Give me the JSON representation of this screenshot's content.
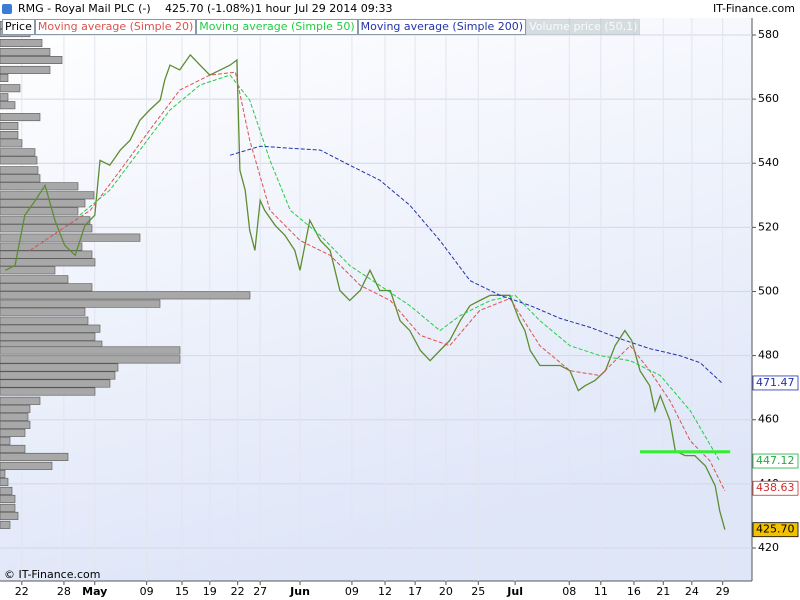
{
  "header": {
    "symbol": "RMG - Royal Mail PLC (-)",
    "quote": "425.70 (-1.08%)",
    "period": "1 hour",
    "datetime": "Jul 29 2014 09:33",
    "brand": "IT-Finance.com"
  },
  "footer": "© IT-Finance.com",
  "chart_data": {
    "type": "line",
    "grid": true,
    "xlim": [
      0,
      100
    ],
    "xticks": [
      {
        "value": 2.9,
        "label": "22"
      },
      {
        "value": 8.5,
        "label": "28"
      },
      {
        "value": 12.6,
        "label": "May"
      },
      {
        "value": 19.5,
        "label": "09"
      },
      {
        "value": 24.2,
        "label": "15"
      },
      {
        "value": 27.9,
        "label": "19"
      },
      {
        "value": 31.6,
        "label": "22"
      },
      {
        "value": 34.6,
        "label": "27"
      },
      {
        "value": 39.9,
        "label": "Jun"
      },
      {
        "value": 46.8,
        "label": "09"
      },
      {
        "value": 51.2,
        "label": "12"
      },
      {
        "value": 55.2,
        "label": "17"
      },
      {
        "value": 59.3,
        "label": "20"
      },
      {
        "value": 63.6,
        "label": "25"
      },
      {
        "value": 68.5,
        "label": "Jul"
      },
      {
        "value": 75.7,
        "label": "08"
      },
      {
        "value": 79.9,
        "label": "11"
      },
      {
        "value": 84.3,
        "label": "16"
      },
      {
        "value": 88.2,
        "label": "21"
      },
      {
        "value": 92.0,
        "label": "24"
      },
      {
        "value": 96.1,
        "label": "29"
      }
    ],
    "ylim": [
      409.7,
      585.3
    ],
    "yticks": [
      420,
      440,
      460,
      480,
      500,
      520,
      540,
      560,
      580
    ],
    "series": [
      {
        "name": "Price",
        "color": "#5e8c32",
        "style": "solid",
        "x": [
          0.7,
          2.0,
          3.3,
          4.7,
          6.0,
          7.3,
          8.6,
          10.0,
          11.3,
          12.6,
          13.3,
          14.6,
          16.0,
          17.3,
          18.6,
          19.9,
          21.3,
          21.9,
          22.6,
          23.9,
          25.3,
          26.6,
          27.9,
          29.3,
          30.6,
          31.5,
          31.9,
          32.6,
          33.2,
          33.9,
          34.6,
          35.2,
          36.6,
          37.9,
          39.2,
          39.9,
          41.2,
          42.6,
          43.9,
          45.2,
          46.5,
          47.9,
          49.2,
          50.5,
          51.9,
          53.2,
          54.5,
          55.9,
          57.2,
          58.5,
          59.8,
          61.2,
          62.5,
          63.8,
          65.2,
          66.5,
          67.8,
          69.1,
          69.8,
          70.5,
          71.8,
          73.1,
          74.5,
          75.8,
          76.9,
          77.8,
          79.1,
          80.5,
          81.8,
          83.1,
          84.0,
          85.1,
          86.4,
          87.1,
          87.8,
          89.1,
          89.8,
          91.1,
          92.4,
          93.8,
          95.1,
          95.7,
          96.4
        ],
        "values": [
          506.6,
          508.1,
          523.8,
          528.4,
          533.1,
          522.2,
          514.4,
          511.3,
          520.6,
          523.8,
          540.9,
          539.4,
          544.1,
          547.2,
          553.4,
          556.6,
          559.7,
          565.9,
          570.6,
          569.1,
          573.8,
          570.6,
          567.5,
          569.1,
          570.6,
          572.2,
          537.8,
          531.6,
          519.1,
          512.8,
          528.4,
          525.3,
          520.6,
          517.5,
          512.8,
          506.6,
          522.2,
          515.9,
          512.8,
          500.3,
          497.2,
          500.3,
          506.6,
          500.3,
          500.3,
          490.9,
          487.8,
          481.6,
          478.4,
          481.6,
          484.7,
          490.9,
          495.6,
          497.2,
          498.8,
          498.8,
          498.8,
          490.9,
          487.8,
          481.6,
          476.9,
          476.9,
          476.9,
          475.3,
          469.1,
          470.6,
          472.2,
          475.3,
          483.1,
          487.8,
          484.7,
          475.3,
          470.6,
          462.8,
          467.5,
          459.7,
          450.3,
          448.8,
          448.8,
          445.6,
          439.4,
          431.6,
          425.7
        ]
      },
      {
        "name": "Moving average (Simple 20)",
        "color": "#d9534f",
        "style": "dashed",
        "x": [
          4.0,
          8.0,
          12.0,
          16.0,
          19.9,
          23.9,
          27.9,
          31.3,
          33.2,
          35.9,
          39.9,
          43.9,
          47.9,
          51.9,
          55.9,
          59.8,
          63.8,
          67.8,
          71.8,
          75.8,
          79.8,
          83.8,
          86.4,
          89.1,
          91.8,
          94.4,
          96.4
        ],
        "values": [
          512.8,
          519.1,
          525.3,
          537.8,
          550.3,
          562.8,
          567.5,
          568.4,
          547.2,
          525.3,
          515.9,
          511.3,
          501.9,
          497.2,
          486.3,
          483.1,
          494.1,
          497.8,
          483.1,
          475.3,
          473.8,
          483.1,
          475.3,
          465.9,
          453.4,
          447.2,
          437.8
        ]
      },
      {
        "name": "Moving average (Simple 50)",
        "color": "#22cc44",
        "style": "dashed",
        "x": [
          10.6,
          14.6,
          18.6,
          22.6,
          26.6,
          30.6,
          33.2,
          35.9,
          38.6,
          42.6,
          46.5,
          50.5,
          54.5,
          58.5,
          61.2,
          65.2,
          68.5,
          71.8,
          75.8,
          79.8,
          83.8,
          87.8,
          91.8,
          95.7
        ],
        "values": [
          523.8,
          531.6,
          544.1,
          556.6,
          564.4,
          567.5,
          559.7,
          540.9,
          525.3,
          517.5,
          508.1,
          501.9,
          495.6,
          487.8,
          492.5,
          497.2,
          498.8,
          490.9,
          483.1,
          480.0,
          478.4,
          473.8,
          462.8,
          447.1
        ]
      },
      {
        "name": "Moving average (Simple 200)",
        "color": "#2233aa",
        "style": "dashed",
        "x": [
          30.6,
          34.6,
          38.6,
          42.6,
          46.5,
          50.5,
          54.5,
          58.5,
          62.5,
          66.5,
          70.5,
          74.5,
          78.5,
          82.4,
          86.4,
          90.4,
          93.1,
          96.0
        ],
        "values": [
          542.5,
          545.3,
          544.7,
          544.1,
          539.4,
          534.7,
          526.9,
          515.9,
          503.4,
          498.8,
          495.6,
          491.6,
          488.8,
          485.3,
          482.2,
          480.0,
          477.8,
          471.5
        ]
      }
    ],
    "volume_profile": {
      "name": "Volume price (50,1)",
      "color": "#a8a8a8",
      "levels": [
        583.1,
        580.6,
        577.5,
        574.7,
        572.2,
        569.1,
        566.6,
        563.4,
        560.6,
        558.1,
        554.4,
        551.6,
        548.8,
        546.2,
        543.4,
        540.9,
        537.8,
        535.3,
        532.8,
        530.0,
        527.5,
        525.0,
        522.2,
        519.7,
        516.8,
        514.0,
        511.5,
        509.1,
        506.6,
        503.8,
        501.3,
        498.8,
        496.2,
        493.7,
        490.9,
        488.4,
        485.9,
        483.4,
        481.6,
        478.8,
        476.3,
        473.8,
        471.3,
        468.8,
        465.9,
        463.4,
        460.9,
        458.4,
        455.9,
        453.4,
        450.9,
        448.4,
        445.6,
        443.1,
        440.6,
        437.8,
        435.3,
        432.5,
        430.0,
        427.2
      ],
      "values": [
        5,
        30,
        42,
        50,
        62,
        50,
        8,
        20,
        8,
        15,
        40,
        18,
        18,
        22,
        35,
        37,
        38,
        40,
        78,
        94,
        85,
        78,
        90,
        92,
        140,
        82,
        92,
        95,
        55,
        68,
        92,
        250,
        160,
        85,
        88,
        100,
        95,
        102,
        180,
        180,
        118,
        115,
        110,
        95,
        40,
        30,
        28,
        30,
        25,
        10,
        25,
        68,
        52,
        5,
        8,
        12,
        15,
        15,
        18,
        10
      ]
    },
    "hline": {
      "value": 450,
      "x": [
        85.1,
        97.1
      ],
      "color": "#33ee33"
    },
    "price_labels": [
      {
        "value": 471.47,
        "label": "471.47",
        "color": "#2233aa",
        "background": "#ffffff"
      },
      {
        "value": 447.12,
        "label": "447.12",
        "color": "#22aa44",
        "background": "#ffffff"
      },
      {
        "value": 438.63,
        "label": "438.63",
        "color": "#c9302c",
        "background": "#ffffff"
      },
      {
        "value": 425.7,
        "label": "425.70",
        "color": "#000000",
        "background": "#f2c200"
      }
    ]
  }
}
